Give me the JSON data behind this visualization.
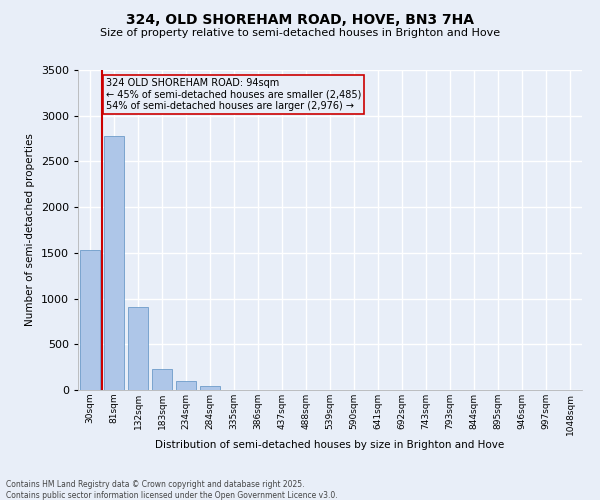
{
  "title_line1": "324, OLD SHOREHAM ROAD, HOVE, BN3 7HA",
  "title_line2": "Size of property relative to semi-detached houses in Brighton and Hove",
  "xlabel": "Distribution of semi-detached houses by size in Brighton and Hove",
  "ylabel": "Number of semi-detached properties",
  "categories": [
    "30sqm",
    "81sqm",
    "132sqm",
    "183sqm",
    "234sqm",
    "284sqm",
    "335sqm",
    "386sqm",
    "437sqm",
    "488sqm",
    "539sqm",
    "590sqm",
    "641sqm",
    "692sqm",
    "743sqm",
    "793sqm",
    "844sqm",
    "895sqm",
    "946sqm",
    "997sqm",
    "1048sqm"
  ],
  "bar_heights": [
    1530,
    2780,
    910,
    230,
    100,
    40,
    5,
    0,
    0,
    0,
    0,
    0,
    0,
    0,
    0,
    0,
    0,
    0,
    0,
    0,
    0
  ],
  "bar_color": "#aec6e8",
  "bar_edge_color": "#5a8fc2",
  "property_line_x": 1,
  "annotation_line1": "324 OLD SHOREHAM ROAD: 94sqm",
  "annotation_line2": "← 45% of semi-detached houses are smaller (2,485)",
  "annotation_line3": "54% of semi-detached houses are larger (2,976) →",
  "line_color": "#cc0000",
  "ylim": [
    0,
    3500
  ],
  "yticks": [
    0,
    500,
    1000,
    1500,
    2000,
    2500,
    3000,
    3500
  ],
  "background_color": "#e8eef8",
  "grid_color": "#ffffff",
  "footer_line1": "Contains HM Land Registry data © Crown copyright and database right 2025.",
  "footer_line2": "Contains public sector information licensed under the Open Government Licence v3.0."
}
